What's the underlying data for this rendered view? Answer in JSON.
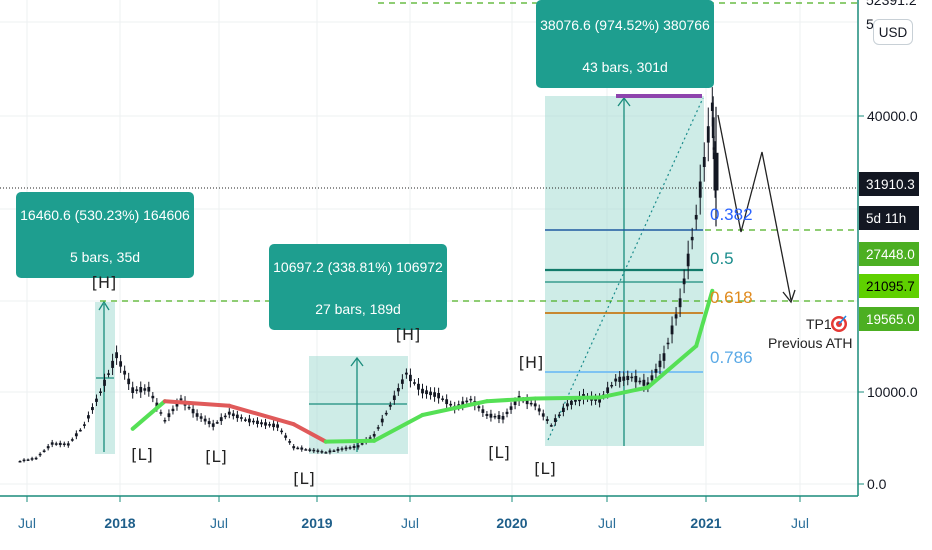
{
  "currency_button": "USD",
  "chart_data": {
    "type": "candlestick",
    "symbol_currency": "USD",
    "x_axis_labels": [
      "Jul",
      "2018",
      "Jul",
      "2019",
      "Jul",
      "2020",
      "Jul",
      "2021",
      "Jul"
    ],
    "y_axis_labels": [
      "40000.0",
      "10000.0",
      "0.0"
    ],
    "y_axis_clipped_labels": [
      "52391.2",
      "5"
    ],
    "price_tags": [
      {
        "label": "31910.3",
        "bg": "#131722",
        "fg": "#ffffff"
      },
      {
        "label": "5d 11h",
        "bg": "#131722",
        "fg": "#ffffff"
      },
      {
        "label": "27448.0",
        "bg": "#4caf22",
        "fg": "#ffffff"
      },
      {
        "label": "21095.7",
        "bg": "#5fd000",
        "fg": "#000000"
      },
      {
        "label": "19565.0",
        "bg": "#4caf22",
        "fg": "#ffffff"
      }
    ],
    "series": [
      {
        "date": "2017-06",
        "value": 2500
      },
      {
        "date": "2017-07",
        "value": 2800
      },
      {
        "date": "2017-08",
        "value": 4400
      },
      {
        "date": "2017-09",
        "value": 4300
      },
      {
        "date": "2017-10",
        "value": 6400
      },
      {
        "date": "2017-11",
        "value": 10000
      },
      {
        "date": "2017-12",
        "value": 14000
      },
      {
        "date": "2018-01",
        "value": 10200
      },
      {
        "date": "2018-02",
        "value": 10300
      },
      {
        "date": "2018-03",
        "value": 6900
      },
      {
        "date": "2018-04",
        "value": 9200
      },
      {
        "date": "2018-05",
        "value": 7500
      },
      {
        "date": "2018-06",
        "value": 6400
      },
      {
        "date": "2018-07",
        "value": 7700
      },
      {
        "date": "2018-08",
        "value": 7000
      },
      {
        "date": "2018-09",
        "value": 6600
      },
      {
        "date": "2018-10",
        "value": 6300
      },
      {
        "date": "2018-11",
        "value": 4000
      },
      {
        "date": "2018-12",
        "value": 3700
      },
      {
        "date": "2019-01",
        "value": 3450
      },
      {
        "date": "2019-02",
        "value": 3800
      },
      {
        "date": "2019-03",
        "value": 4100
      },
      {
        "date": "2019-04",
        "value": 5300
      },
      {
        "date": "2019-05",
        "value": 8500
      },
      {
        "date": "2019-06",
        "value": 12000
      },
      {
        "date": "2019-07",
        "value": 10100
      },
      {
        "date": "2019-08",
        "value": 9600
      },
      {
        "date": "2019-09",
        "value": 8300
      },
      {
        "date": "2019-10",
        "value": 9200
      },
      {
        "date": "2019-11",
        "value": 7500
      },
      {
        "date": "2019-12",
        "value": 7200
      },
      {
        "date": "2020-01",
        "value": 9300
      },
      {
        "date": "2020-02",
        "value": 8600
      },
      {
        "date": "2020-03",
        "value": 6400
      },
      {
        "date": "2020-04",
        "value": 8600
      },
      {
        "date": "2020-05",
        "value": 9500
      },
      {
        "date": "2020-06",
        "value": 9100
      },
      {
        "date": "2020-07",
        "value": 11300
      },
      {
        "date": "2020-08",
        "value": 11600
      },
      {
        "date": "2020-09",
        "value": 10800
      },
      {
        "date": "2020-10",
        "value": 13800
      },
      {
        "date": "2020-11",
        "value": 19700
      },
      {
        "date": "2020-12",
        "value": 29000
      },
      {
        "date": "2021-01",
        "value": 41000
      },
      {
        "date": "2021-01b",
        "value": 31910
      }
    ],
    "moving_average": [
      {
        "date": "2018-01",
        "value": 6000
      },
      {
        "date": "2018-03",
        "value": 9000
      },
      {
        "date": "2018-07",
        "value": 8500
      },
      {
        "date": "2018-11",
        "value": 6500
      },
      {
        "date": "2019-01",
        "value": 4600
      },
      {
        "date": "2019-04",
        "value": 4700
      },
      {
        "date": "2019-07",
        "value": 7500
      },
      {
        "date": "2019-11",
        "value": 9000
      },
      {
        "date": "2020-02",
        "value": 9300
      },
      {
        "date": "2020-06",
        "value": 9400
      },
      {
        "date": "2020-09",
        "value": 10500
      },
      {
        "date": "2020-12",
        "value": 15000
      },
      {
        "date": "2021-01",
        "value": 21000
      }
    ],
    "measure_boxes": [
      {
        "line1": "16460.6 (530.23%) 164606",
        "line2": "5 bars, 35d"
      },
      {
        "line1": "10697.2 (338.81%) 106972",
        "line2": "27 bars, 189d"
      },
      {
        "line1": "38076.6 (974.52%) 380766",
        "line2": "43 bars, 301d"
      }
    ],
    "pivots": [
      "[H]",
      "[L]",
      "[L]",
      "[L]",
      "[H]",
      "[L]",
      "[H]",
      "[L]"
    ],
    "fib_levels": [
      {
        "label": "0.382",
        "color": "#2962ff",
        "line": "#1e5aa0"
      },
      {
        "label": "0.5",
        "color": "#1a8c8c",
        "line": "#127a6a"
      },
      {
        "label": "0.618",
        "color": "#e08a1e",
        "line": "#c67a18"
      },
      {
        "label": "0.786",
        "color": "#5aa9e6",
        "line": "#64b5f6"
      }
    ],
    "target_label": "TP1",
    "target_note": "Previous ATH"
  },
  "colors": {
    "accent": "#26a69a",
    "up_ma": "#55e055",
    "down_ma": "#e05a5a",
    "dashed_level": "#4caf22",
    "axis_text": "#2a6f9a"
  }
}
